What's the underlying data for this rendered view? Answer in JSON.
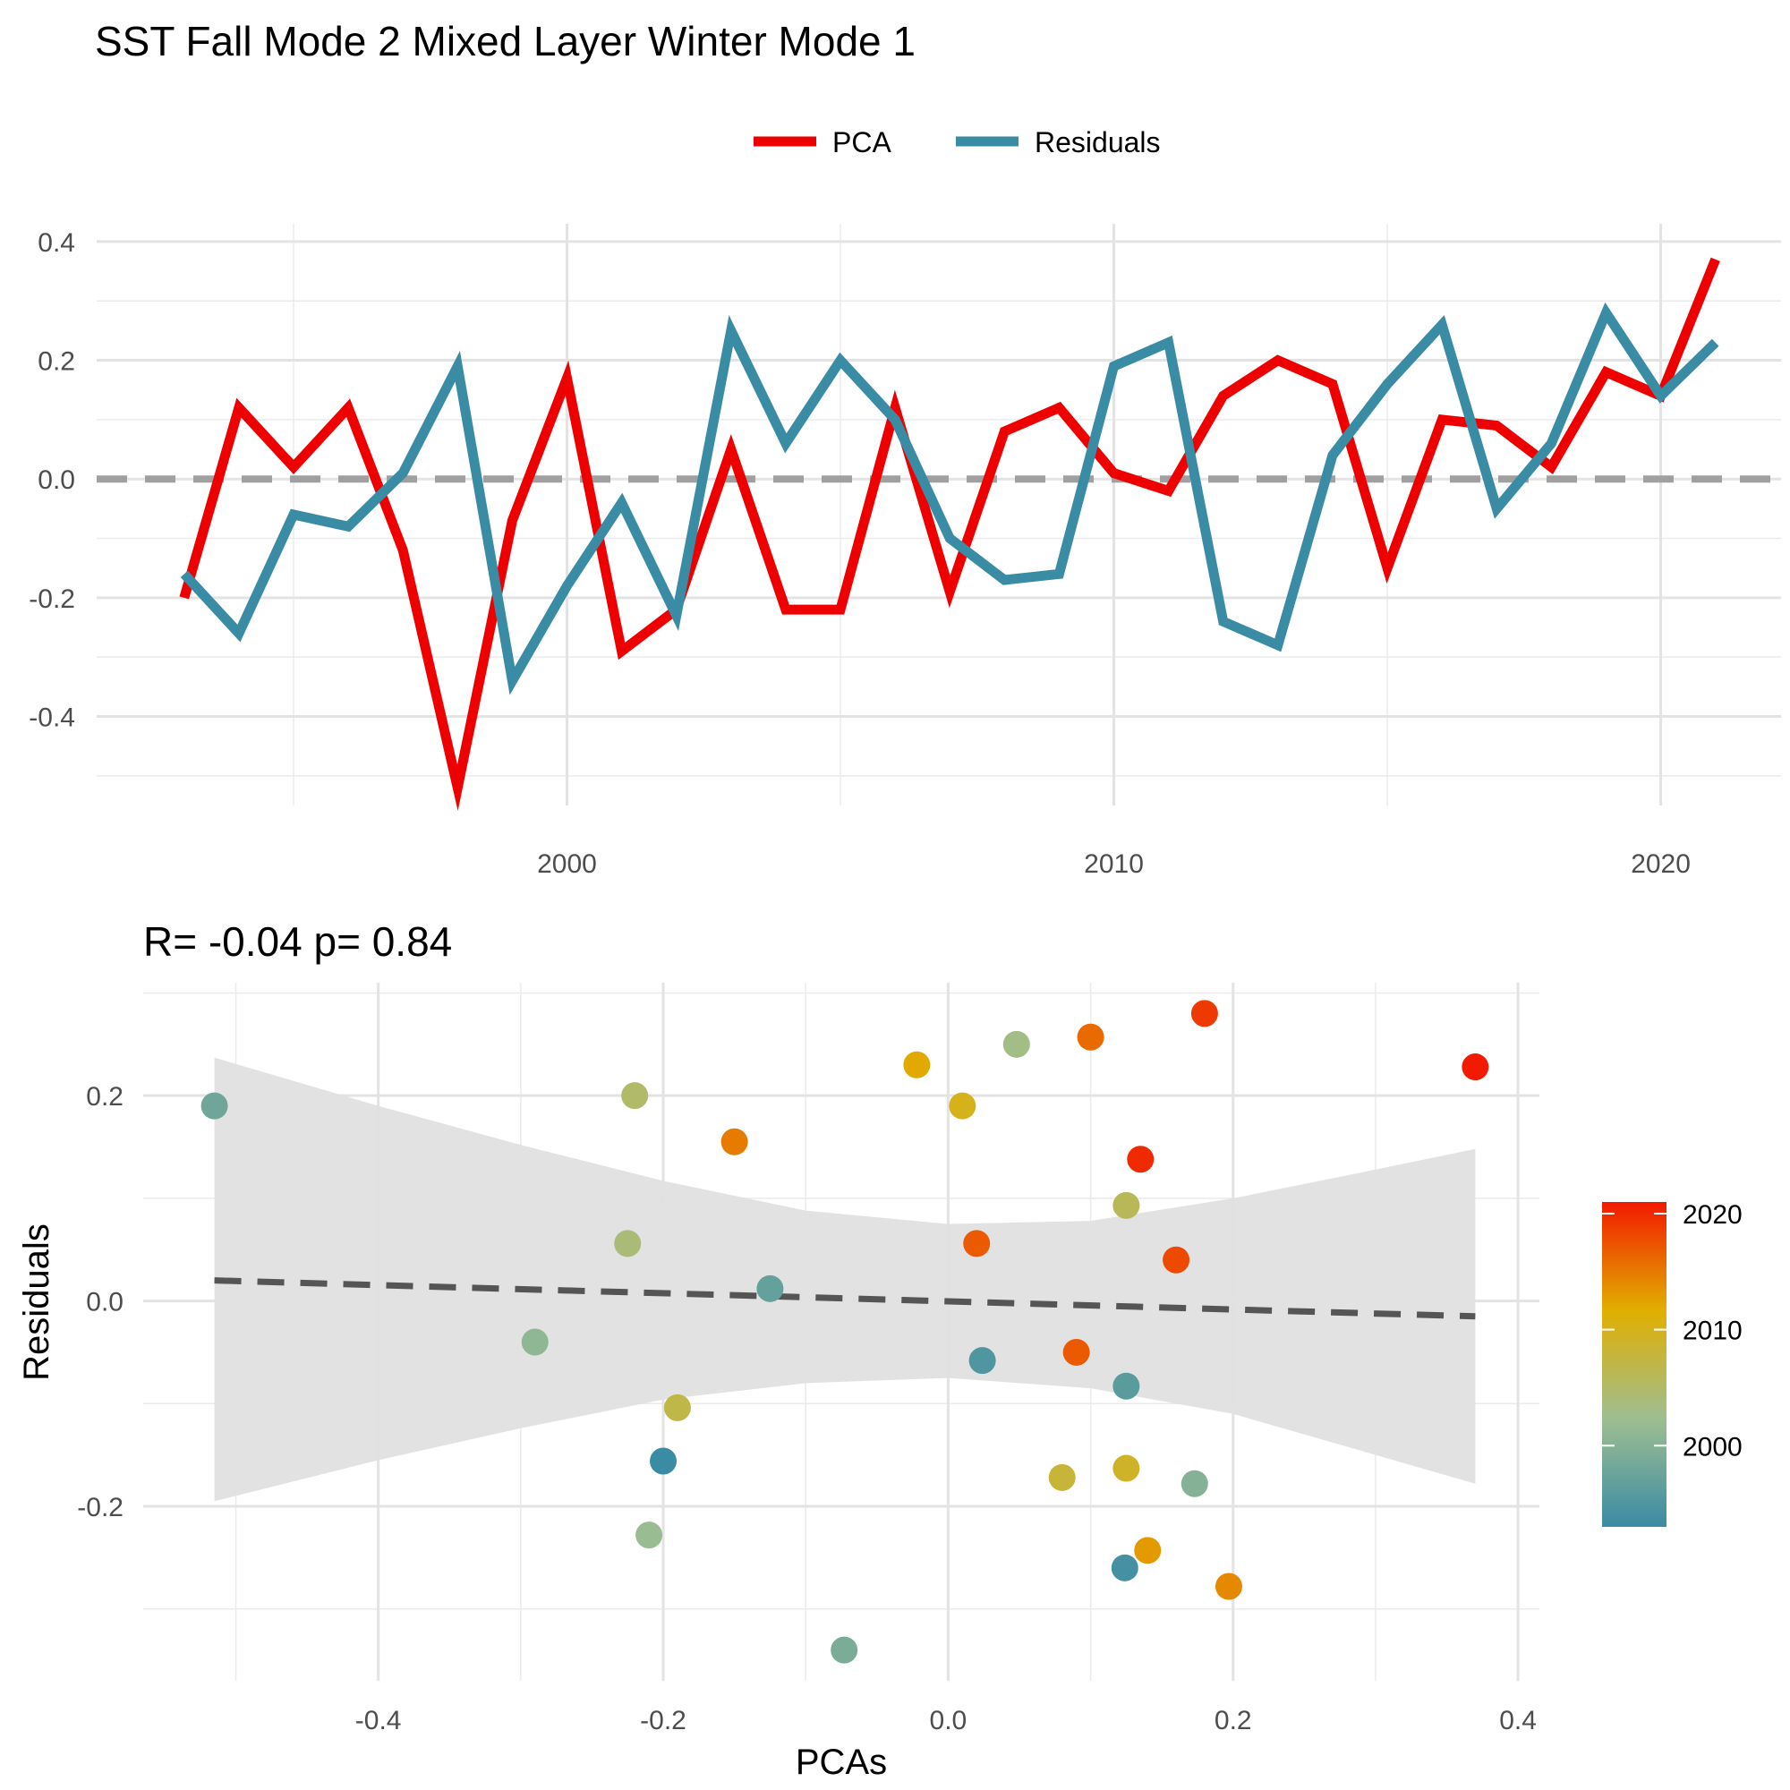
{
  "title": "SST Fall Mode 2 Mixed Layer Winter Mode 1",
  "legend": {
    "position": "top",
    "items": [
      {
        "label": "PCA",
        "color": "#EE0000"
      },
      {
        "label": "Residuals",
        "color": "#3A8BA4"
      }
    ]
  },
  "chart_data": [
    {
      "type": "line",
      "title": "",
      "xlabel": "",
      "ylabel": "",
      "xlim": [
        1991.4,
        2022.2
      ],
      "ylim": [
        -0.55,
        0.43
      ],
      "x_ticks": [
        2000,
        2010,
        2020
      ],
      "y_ticks": [
        -0.4,
        -0.2,
        0.0,
        0.2,
        0.4
      ],
      "y_tick_labels": [
        "-0.4",
        "-0.2",
        "0.0",
        "0.2",
        "0.4"
      ],
      "grid": true,
      "reference_line": {
        "y": 0,
        "style": "dashed",
        "color": "#A0A0A0"
      },
      "x": [
        1993,
        1994,
        1995,
        1996,
        1997,
        1998,
        1999,
        2000,
        2001,
        2002,
        2003,
        2004,
        2005,
        2006,
        2007,
        2008,
        2009,
        2010,
        2011,
        2012,
        2013,
        2014,
        2015,
        2016,
        2017,
        2018,
        2019,
        2020,
        2021
      ],
      "series": [
        {
          "name": "PCA",
          "color": "#EE0000",
          "values": [
            -0.2,
            0.12,
            0.02,
            0.12,
            -0.12,
            -0.52,
            -0.07,
            0.17,
            -0.29,
            -0.22,
            0.05,
            -0.22,
            -0.22,
            0.12,
            -0.19,
            0.08,
            0.12,
            0.01,
            -0.02,
            0.14,
            0.2,
            0.16,
            -0.15,
            0.1,
            0.09,
            0.02,
            0.18,
            0.14,
            0.37
          ]
        },
        {
          "name": "Residuals",
          "color": "#3A8BA4",
          "values": [
            -0.16,
            -0.26,
            -0.06,
            -0.08,
            0.01,
            0.19,
            -0.34,
            -0.18,
            -0.04,
            -0.23,
            0.25,
            0.06,
            0.2,
            0.1,
            -0.1,
            -0.17,
            -0.16,
            0.19,
            0.23,
            -0.24,
            -0.28,
            0.04,
            0.16,
            0.26,
            -0.05,
            0.06,
            0.28,
            0.14,
            0.23
          ]
        }
      ]
    },
    {
      "type": "scatter",
      "title": "R= -0.04  p= 0.84",
      "xlabel": "PCAs",
      "ylabel": "Residuals",
      "xlim": [
        -0.565,
        0.415
      ],
      "ylim": [
        -0.37,
        0.31
      ],
      "x_ticks": [
        -0.4,
        -0.2,
        0.0,
        0.2,
        0.4
      ],
      "x_tick_labels": [
        "-0.4",
        "-0.2",
        "0.0",
        "0.2",
        "0.4"
      ],
      "y_ticks": [
        -0.2,
        0.0,
        0.2
      ],
      "y_tick_labels": [
        "-0.2",
        "0.0",
        "0.2"
      ],
      "grid": true,
      "fit_line": {
        "style": "dashed",
        "color": "#555555",
        "x": [
          -0.515,
          0.37
        ],
        "y": [
          0.02,
          -0.015
        ]
      },
      "confidence_band": {
        "color": "#E0E0E0",
        "x": [
          -0.515,
          -0.4,
          -0.3,
          -0.2,
          -0.1,
          0.0,
          0.1,
          0.2,
          0.3,
          0.37
        ],
        "upper": [
          0.237,
          0.19,
          0.152,
          0.117,
          0.088,
          0.075,
          0.078,
          0.1,
          0.128,
          0.148
        ],
        "lower": [
          -0.195,
          -0.155,
          -0.124,
          -0.096,
          -0.08,
          -0.075,
          -0.085,
          -0.11,
          -0.15,
          -0.178
        ]
      },
      "colorbar": {
        "title": "",
        "position": "right",
        "range": [
          1993,
          2021
        ],
        "ticks": [
          2000,
          2010,
          2020
        ],
        "gradient": [
          "#3A8BA4",
          "#9EBE91",
          "#E1AF00",
          "#F21A00"
        ]
      },
      "points": [
        {
          "x": -0.515,
          "y": 0.19,
          "year": 1998
        },
        {
          "x": -0.22,
          "y": 0.2,
          "year": 2005
        },
        {
          "x": -0.225,
          "y": 0.056,
          "year": 2004
        },
        {
          "x": -0.15,
          "y": 0.155,
          "year": 2015
        },
        {
          "x": -0.125,
          "y": 0.012,
          "year": 1997
        },
        {
          "x": -0.29,
          "y": -0.04,
          "year": 2001
        },
        {
          "x": -0.19,
          "y": -0.104,
          "year": 2007
        },
        {
          "x": -0.2,
          "y": -0.156,
          "year": 1993
        },
        {
          "x": -0.21,
          "y": -0.228,
          "year": 2002
        },
        {
          "x": -0.073,
          "y": -0.34,
          "year": 1999
        },
        {
          "x": -0.022,
          "y": 0.23,
          "year": 2012
        },
        {
          "x": 0.01,
          "y": 0.19,
          "year": 2010
        },
        {
          "x": 0.048,
          "y": 0.25,
          "year": 2003
        },
        {
          "x": 0.1,
          "y": 0.257,
          "year": 2016
        },
        {
          "x": 0.18,
          "y": 0.28,
          "year": 2019
        },
        {
          "x": 0.37,
          "y": 0.228,
          "year": 2021
        },
        {
          "x": 0.135,
          "y": 0.138,
          "year": 2020
        },
        {
          "x": 0.125,
          "y": 0.093,
          "year": 2006
        },
        {
          "x": 0.02,
          "y": 0.056,
          "year": 2017
        },
        {
          "x": 0.16,
          "y": 0.04,
          "year": 2018
        },
        {
          "x": 0.024,
          "y": -0.058,
          "year": 1995
        },
        {
          "x": 0.09,
          "y": -0.05,
          "year": 2017
        },
        {
          "x": 0.125,
          "y": -0.083,
          "year": 1996
        },
        {
          "x": 0.08,
          "y": -0.172,
          "year": 2008
        },
        {
          "x": 0.125,
          "y": -0.163,
          "year": 2009
        },
        {
          "x": 0.173,
          "y": -0.178,
          "year": 2000
        },
        {
          "x": 0.14,
          "y": -0.243,
          "year": 2013
        },
        {
          "x": 0.124,
          "y": -0.26,
          "year": 1994
        },
        {
          "x": 0.197,
          "y": -0.278,
          "year": 2014
        }
      ]
    }
  ]
}
